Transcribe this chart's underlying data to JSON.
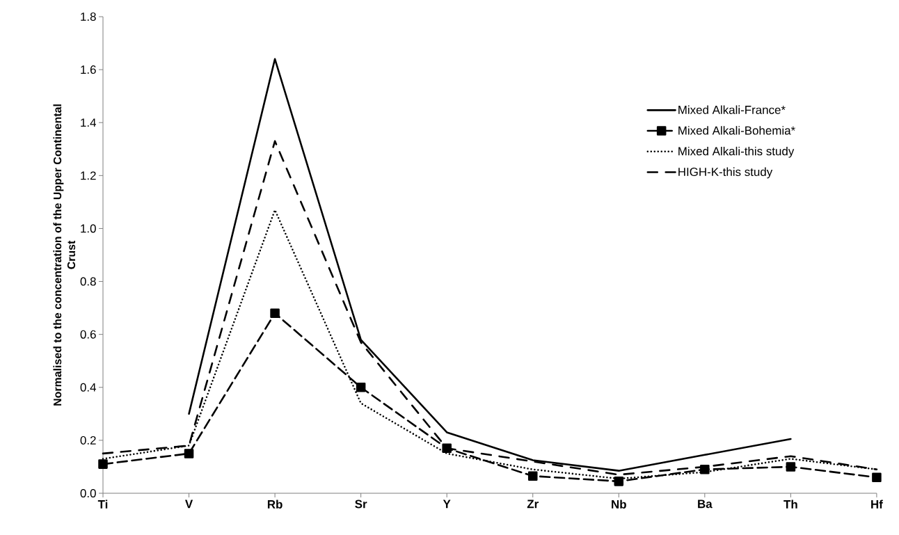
{
  "chart_data": {
    "type": "line",
    "ylabel": "Normalised  to the concentration of the Upper Continental Crust",
    "categories": [
      "Ti",
      "V",
      "Rb",
      "Sr",
      "Y",
      "Zr",
      "Nb",
      "Ba",
      "Th",
      "Hf"
    ],
    "series": [
      {
        "name": "Mixed Alkali-France*",
        "color": "#000000",
        "line_style": "solid",
        "marker": "none",
        "values": [
          null,
          0.3,
          1.64,
          0.58,
          0.23,
          0.125,
          0.085,
          0.145,
          0.205,
          null
        ]
      },
      {
        "name": "Mixed Alkali-Bohemia*",
        "color": "#000000",
        "line_style": "dashed",
        "marker": "square",
        "values": [
          0.11,
          0.15,
          0.68,
          0.4,
          0.17,
          0.065,
          0.045,
          0.09,
          0.1,
          0.06
        ]
      },
      {
        "name": "Mixed Alkali-this study",
        "color": "#000000",
        "line_style": "dotted",
        "marker": "none",
        "values": [
          0.13,
          0.18,
          1.07,
          0.34,
          0.15,
          0.09,
          0.055,
          0.08,
          0.13,
          0.09
        ]
      },
      {
        "name": "HIGH-K-this study",
        "color": "#000000",
        "line_style": "dashdot",
        "marker": "none",
        "values": [
          0.15,
          0.18,
          1.33,
          0.57,
          0.17,
          0.12,
          0.07,
          0.1,
          0.14,
          0.09
        ]
      }
    ],
    "ylim": [
      0,
      1.8
    ],
    "yticks": [
      {
        "value": 0,
        "label": "0.0"
      },
      {
        "value": 0.2,
        "label": "0.2"
      },
      {
        "value": 0.4,
        "label": "0.4"
      },
      {
        "value": 0.6,
        "label": "0.6"
      },
      {
        "value": 0.8,
        "label": "0.8"
      },
      {
        "value": 1.0,
        "label": "1.0"
      },
      {
        "value": 1.2,
        "label": "1.2"
      },
      {
        "value": 1.4,
        "label": "1.4"
      },
      {
        "value": 1.6,
        "label": "1.6"
      },
      {
        "value": 1.8,
        "label": "1.8"
      }
    ],
    "grid": false,
    "legend": "right"
  }
}
